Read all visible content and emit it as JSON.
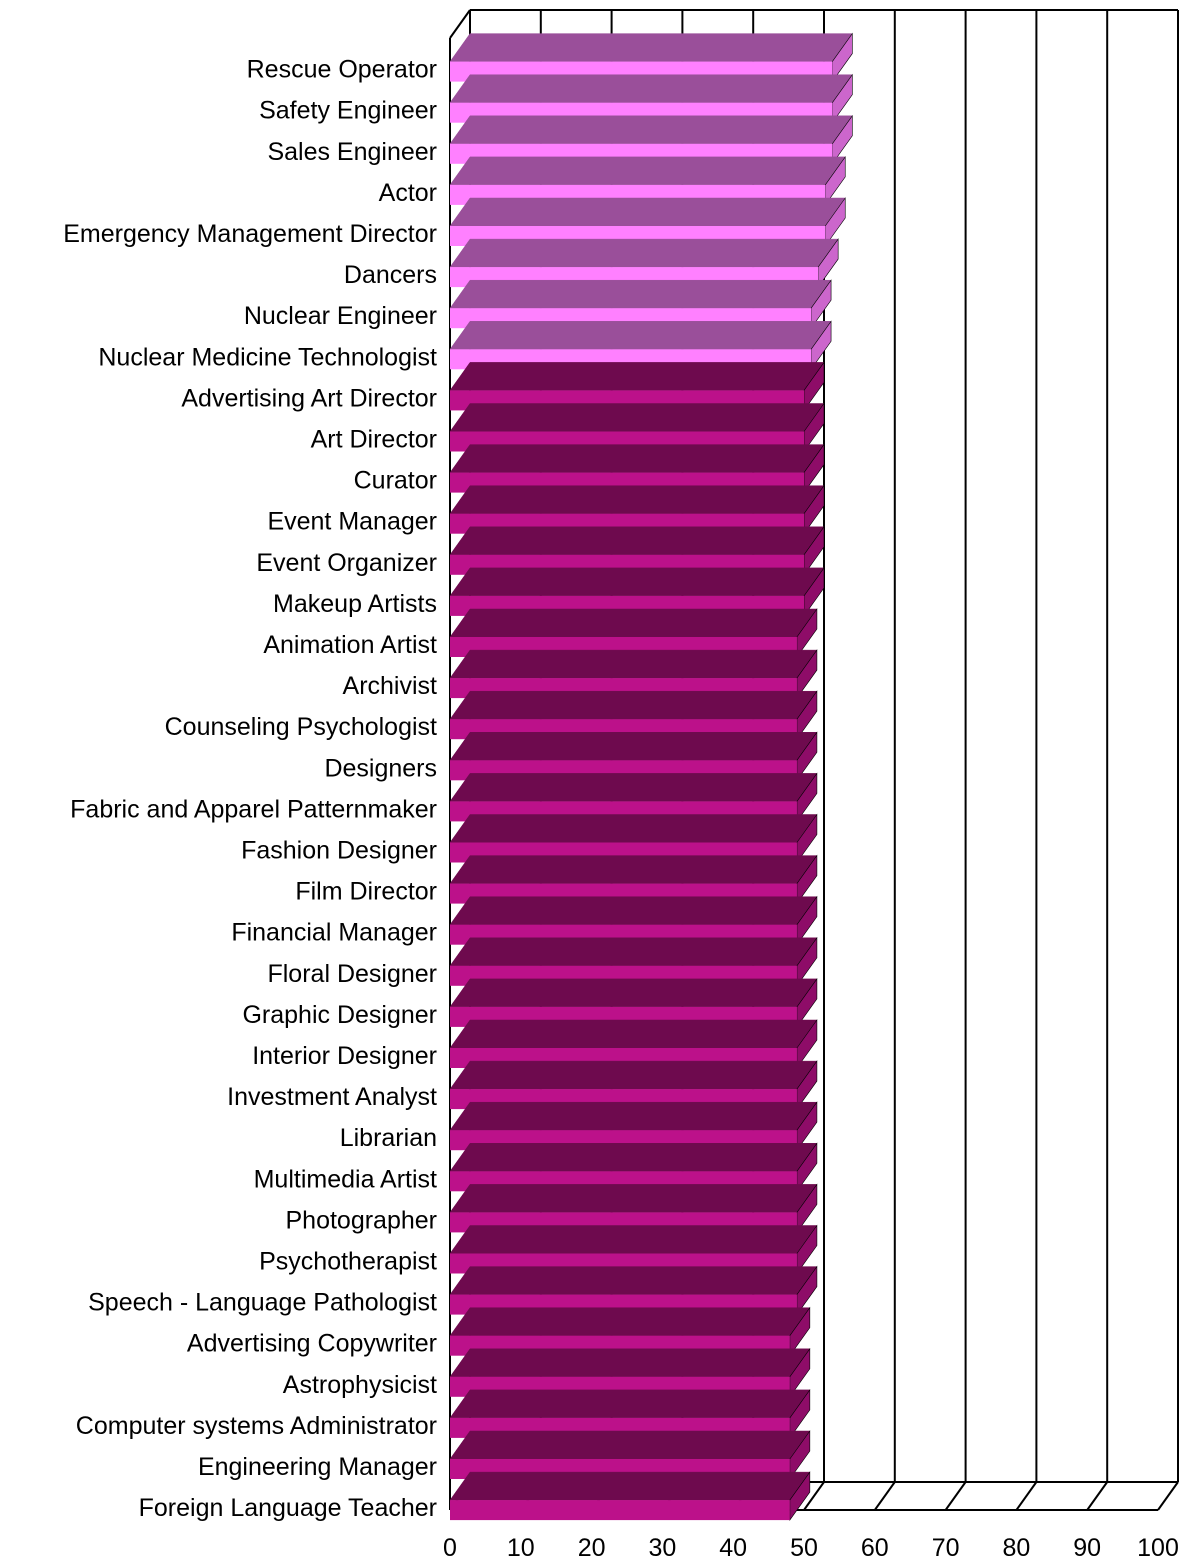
{
  "chart_data": {
    "type": "bar",
    "orientation": "horizontal",
    "style": "3d",
    "title": "",
    "xlabel": "",
    "ylabel": "",
    "xlim": [
      0,
      100
    ],
    "xticks": [
      0,
      10,
      20,
      30,
      40,
      50,
      60,
      70,
      80,
      90,
      100
    ],
    "grid": true,
    "legend": "none",
    "categories": [
      "Rescue Operator",
      "Safety Engineer",
      "Sales Engineer",
      "Actor",
      "Emergency Management Director",
      "Dancers",
      "Nuclear Engineer",
      "Nuclear Medicine Technologist",
      "Advertising Art Director",
      "Art Director",
      "Curator",
      "Event Manager",
      "Event Organizer",
      "Makeup Artists",
      "Animation Artist",
      "Archivist",
      "Counseling Psychologist",
      "Designers",
      "Fabric and Apparel Patternmaker",
      "Fashion Designer",
      "Film Director",
      "Financial Manager",
      "Floral Designer",
      "Graphic Designer",
      "Interior Designer",
      "Investment Analyst",
      "Librarian",
      "Multimedia Artist",
      "Photographer",
      "Psychotherapist",
      "Speech - Language Pathologist",
      "Advertising Copywriter",
      "Astrophysicist",
      "Computer systems Administrator",
      "Engineering Manager",
      "Foreign Language Teacher"
    ],
    "values": [
      54,
      54,
      54,
      53,
      53,
      52,
      51,
      51,
      50,
      50,
      50,
      50,
      50,
      50,
      49,
      49,
      49,
      49,
      49,
      49,
      49,
      49,
      49,
      49,
      49,
      49,
      49,
      49,
      49,
      49,
      49,
      48,
      48,
      48,
      48,
      48
    ],
    "colors": {
      "highlight_front": "#ff80ff",
      "highlight_top": "#9a4f9a",
      "highlight_side": "#cc66cc",
      "normal_front": "#bc118a",
      "normal_top": "#6e0a4e",
      "normal_side": "#8e0c68",
      "highlight_count": 8
    }
  }
}
